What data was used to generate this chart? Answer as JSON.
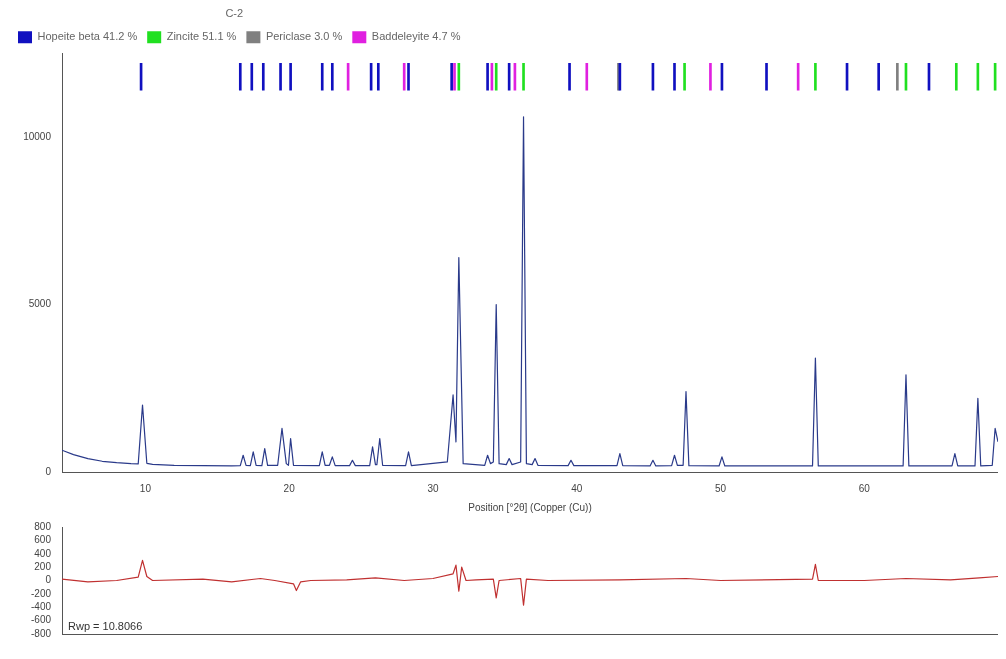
{
  "chart_data": [
    {
      "type": "line",
      "xlabel": "Position [°2θ] (Copper (Cu))",
      "legend_title": "C-2",
      "legend": "top left",
      "grid": false,
      "xlim": [
        4.2,
        69.3
      ],
      "xticks": [
        10,
        20,
        30,
        40,
        50,
        60
      ],
      "ylim": [
        0,
        12500
      ],
      "yticks": [
        0,
        5000,
        10000
      ],
      "series": [
        {
          "color": "#2a3a8a",
          "x": [
            4.2,
            5,
            6,
            7,
            8,
            9,
            9.5,
            9.8,
            10.1,
            10.5,
            12,
            14,
            16,
            16.6,
            16.8,
            17.0,
            17.3,
            17.5,
            17.7,
            18.1,
            18.3,
            18.5,
            19.2,
            19.5,
            19.8,
            19.95,
            20.1,
            20.3,
            22.1,
            22.3,
            22.5,
            22.8,
            23.0,
            23.2,
            24.2,
            24.4,
            24.6,
            25.6,
            25.8,
            26.0,
            26.1,
            26.3,
            26.5,
            28.1,
            28.3,
            28.5,
            31.0,
            31.4,
            31.6,
            31.8,
            32.1,
            33.6,
            33.8,
            34.0,
            34.2,
            34.4,
            34.6,
            35.1,
            35.3,
            35.5,
            36.1,
            36.3,
            36.5,
            36.9,
            37.1,
            37.3,
            39.4,
            39.6,
            39.8,
            42.8,
            43.0,
            43.2,
            45.1,
            45.3,
            45.5,
            46.6,
            46.8,
            47.0,
            47.4,
            47.6,
            47.8,
            49.9,
            50.1,
            50.3,
            56.4,
            56.6,
            56.8,
            62.7,
            62.9,
            63.1,
            66.1,
            66.3,
            66.5,
            67.7,
            67.9,
            68.1,
            68.9,
            69.1,
            69.3
          ],
          "values": [
            650,
            520,
            400,
            320,
            280,
            250,
            240,
            2000,
            260,
            230,
            200,
            190,
            180,
            190,
            500,
            200,
            190,
            600,
            200,
            190,
            700,
            200,
            200,
            1300,
            250,
            200,
            1000,
            200,
            190,
            600,
            200,
            200,
            450,
            190,
            190,
            350,
            190,
            190,
            750,
            220,
            220,
            1000,
            200,
            190,
            600,
            190,
            300,
            2300,
            900,
            6400,
            250,
            200,
            500,
            250,
            300,
            5000,
            250,
            220,
            400,
            220,
            300,
            10600,
            250,
            220,
            400,
            200,
            190,
            350,
            190,
            190,
            550,
            190,
            180,
            350,
            180,
            190,
            500,
            200,
            200,
            2400,
            190,
            180,
            450,
            180,
            180,
            3400,
            180,
            180,
            2900,
            180,
            180,
            550,
            180,
            180,
            2200,
            180,
            200,
            1300,
            900
          ]
        },
        {
          "type": "bar",
          "name": "Hopeite beta 41.2 %",
          "color": "#1010c0",
          "x": [
            9.7,
            16.6,
            17.4,
            18.2,
            19.4,
            20.1,
            22.3,
            23.0,
            25.7,
            26.2,
            28.3,
            31.3,
            33.8,
            35.3,
            39.5,
            43.0,
            45.3,
            46.8,
            50.1,
            53.2,
            58.8,
            61.0,
            64.5
          ],
          "base": [
            11400,
            11400,
            11400,
            11400,
            11400,
            11400,
            11400,
            11400,
            11400,
            11400,
            11400,
            11400,
            11400,
            11400,
            11400,
            11400,
            11400,
            11400,
            11400,
            11400,
            11400,
            11400,
            11400
          ],
          "values": [
            800,
            800,
            800,
            800,
            800,
            800,
            800,
            800,
            800,
            800,
            800,
            800,
            800,
            800,
            800,
            800,
            800,
            800,
            800,
            800,
            800,
            800,
            800
          ]
        },
        {
          "type": "bar",
          "name": "Zincite 51.1 %",
          "color": "#20e020",
          "x": [
            31.8,
            34.4,
            36.3,
            47.5,
            56.6,
            62.9,
            66.4,
            67.9,
            69.1
          ],
          "base": [
            11400,
            11400,
            11400,
            11400,
            11400,
            11400,
            11400,
            11400,
            11400
          ],
          "values": [
            800,
            800,
            800,
            800,
            800,
            800,
            800,
            800,
            800
          ]
        },
        {
          "type": "bar",
          "name": "Periclase 3.0 %",
          "color": "#808080",
          "x": [
            42.9,
            62.3
          ],
          "base": [
            11400,
            11400
          ],
          "values": [
            800,
            800
          ]
        },
        {
          "type": "bar",
          "name": "Baddeleyite 4.7 %",
          "color": "#e020e0",
          "x": [
            24.1,
            28.0,
            31.5,
            34.1,
            35.7,
            40.7,
            49.3,
            55.4
          ],
          "base": [
            11400,
            11400,
            11400,
            11400,
            11400,
            11400,
            11400,
            11400
          ],
          "values": [
            800,
            800,
            800,
            800,
            800,
            800,
            800,
            800
          ]
        }
      ]
    },
    {
      "type": "line",
      "xlim": [
        4.2,
        69.3
      ],
      "tick_labels": "y",
      "grid": false,
      "ylim": [
        -800,
        800
      ],
      "yticks": [
        800,
        600,
        400,
        200,
        0,
        -200,
        -400,
        -600,
        -800
      ],
      "annotations": [
        "Rwp = 10.8066"
      ],
      "series": [
        {
          "color": "#c03030",
          "x": [
            4.2,
            6,
            8,
            9.5,
            9.8,
            10.1,
            10.5,
            14,
            16,
            18,
            19,
            20.3,
            20.5,
            20.8,
            21.5,
            24,
            26,
            28,
            30,
            31.4,
            31.6,
            31.8,
            32.0,
            32.3,
            33,
            34.2,
            34.4,
            34.6,
            36.1,
            36.3,
            36.5,
            38,
            43,
            47.6,
            50,
            56.4,
            56.6,
            56.8,
            60,
            62.9,
            66,
            68,
            69.3
          ],
          "values": [
            20,
            -20,
            0,
            50,
            300,
            60,
            0,
            20,
            -20,
            30,
            0,
            -50,
            -150,
            -20,
            0,
            10,
            40,
            0,
            30,
            100,
            230,
            -160,
            200,
            0,
            10,
            20,
            -260,
            0,
            30,
            -370,
            20,
            0,
            10,
            30,
            0,
            20,
            240,
            0,
            0,
            30,
            10,
            40,
            60
          ]
        }
      ]
    }
  ]
}
